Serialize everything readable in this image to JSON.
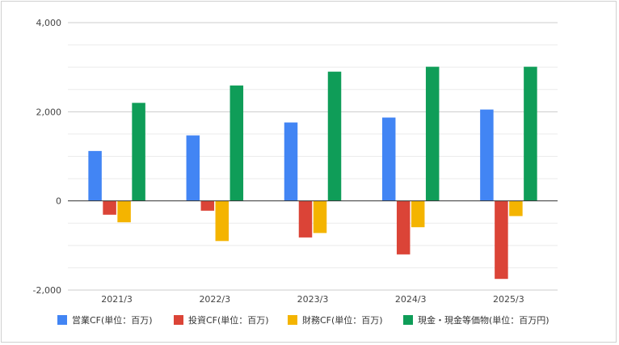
{
  "chart_data": {
    "type": "bar",
    "title": "",
    "xlabel": "",
    "ylabel": "",
    "ylim": [
      -2000,
      4000
    ],
    "yticks": [
      -2000,
      0,
      2000,
      4000
    ],
    "ytick_labels": [
      "-2,000",
      "0",
      "2,000",
      "4,000"
    ],
    "grid": true,
    "legend_position": "bottom",
    "categories": [
      "2021/3",
      "2022/3",
      "2023/3",
      "2024/3",
      "2025/3"
    ],
    "series": [
      {
        "name": "営業CF(単位：百万)",
        "color": "#4285f4",
        "values": [
          1120,
          1470,
          1760,
          1870,
          2050
        ]
      },
      {
        "name": "投資CF(単位：百万)",
        "color": "#db4437",
        "values": [
          -310,
          -220,
          -820,
          -1200,
          -1750
        ]
      },
      {
        "name": "財務CF(単位：百万)",
        "color": "#f4b400",
        "values": [
          -480,
          -900,
          -720,
          -590,
          -340
        ]
      },
      {
        "name": "現金・現金等価物(単位：百万円)",
        "color": "#0f9d58",
        "values": [
          2200,
          2590,
          2900,
          3010,
          3010
        ]
      }
    ]
  }
}
